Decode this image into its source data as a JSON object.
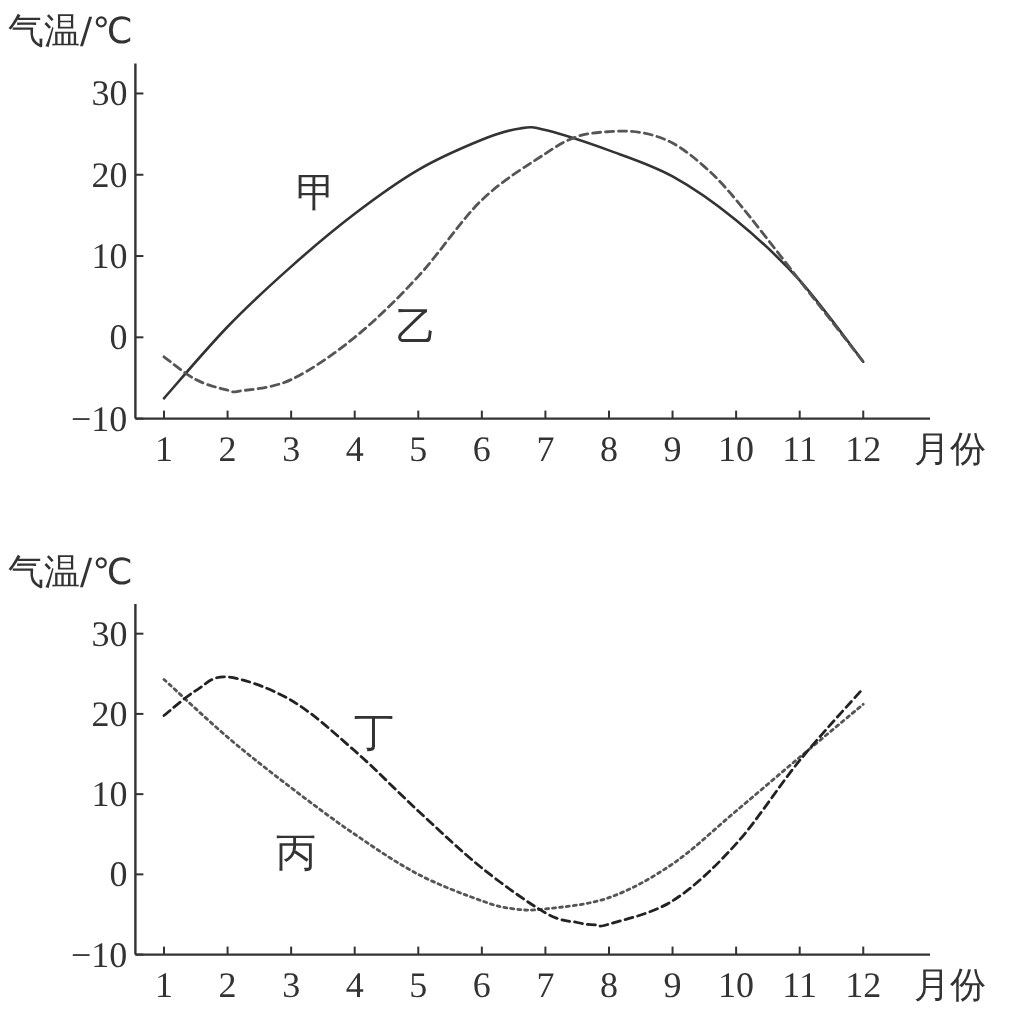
{
  "chart_data": [
    {
      "type": "line",
      "ylabel": "气温/℃",
      "xlabel": "月份",
      "xlim": [
        0.55,
        13.05
      ],
      "ylim": [
        -10,
        33.7
      ],
      "xticks": [
        1,
        2,
        3,
        4,
        5,
        6,
        7,
        8,
        9,
        10,
        11,
        12
      ],
      "yticks": [
        -10,
        0,
        10,
        20,
        30
      ],
      "grid": false,
      "marker": "none",
      "series": [
        {
          "name": "甲",
          "color": "#333333",
          "line_style": "solid",
          "x": [
            1,
            2,
            3,
            4,
            5,
            6,
            6.6,
            7,
            8,
            9,
            10,
            11,
            12
          ],
          "values": [
            -7.5,
            1.3,
            8.7,
            15.2,
            20.6,
            24.3,
            25.7,
            25.5,
            23,
            19.8,
            14.4,
            7,
            -3
          ]
        },
        {
          "name": "乙",
          "color": "#555555",
          "line_style": "dashed",
          "x": [
            1,
            1.5,
            2,
            2.2,
            3,
            4,
            5,
            6,
            7,
            7.5,
            8,
            8.5,
            9,
            9.5,
            10,
            11,
            12
          ],
          "values": [
            -2.4,
            -5.2,
            -6.5,
            -6.6,
            -5.2,
            0,
            7.5,
            16.9,
            22.6,
            24.7,
            25.3,
            25.2,
            23.9,
            21,
            16.9,
            7,
            -3
          ]
        }
      ]
    },
    {
      "type": "line",
      "ylabel": "气温/℃",
      "xlabel": "月份",
      "xlim": [
        0.55,
        13.05
      ],
      "ylim": [
        -10,
        33.7
      ],
      "xticks": [
        1,
        2,
        3,
        4,
        5,
        6,
        7,
        8,
        9,
        10,
        11,
        12
      ],
      "yticks": [
        -10,
        0,
        10,
        20,
        30
      ],
      "grid": false,
      "marker": "none",
      "series": [
        {
          "name": "丙",
          "color": "#555555",
          "line_style": "dotted",
          "x": [
            1,
            2,
            3,
            4,
            5,
            6,
            6.5,
            7,
            8,
            9,
            10,
            11,
            12
          ],
          "values": [
            24.3,
            17.1,
            10.8,
            5,
            0,
            -3.3,
            -4.3,
            -4.3,
            -2.9,
            1.3,
            7.9,
            14.6,
            21.2
          ]
        },
        {
          "name": "丁",
          "color": "#222222",
          "line_style": "dashed",
          "x": [
            1,
            1.5,
            2,
            3,
            4,
            5,
            6,
            7,
            7.5,
            7.8,
            8,
            9,
            10,
            11,
            12
          ],
          "values": [
            19.8,
            22.9,
            24.6,
            21.7,
            15.4,
            7.9,
            0.8,
            -4.8,
            -6,
            -6.3,
            -6.2,
            -3.3,
            3.8,
            14.2,
            23.2
          ]
        }
      ]
    }
  ]
}
